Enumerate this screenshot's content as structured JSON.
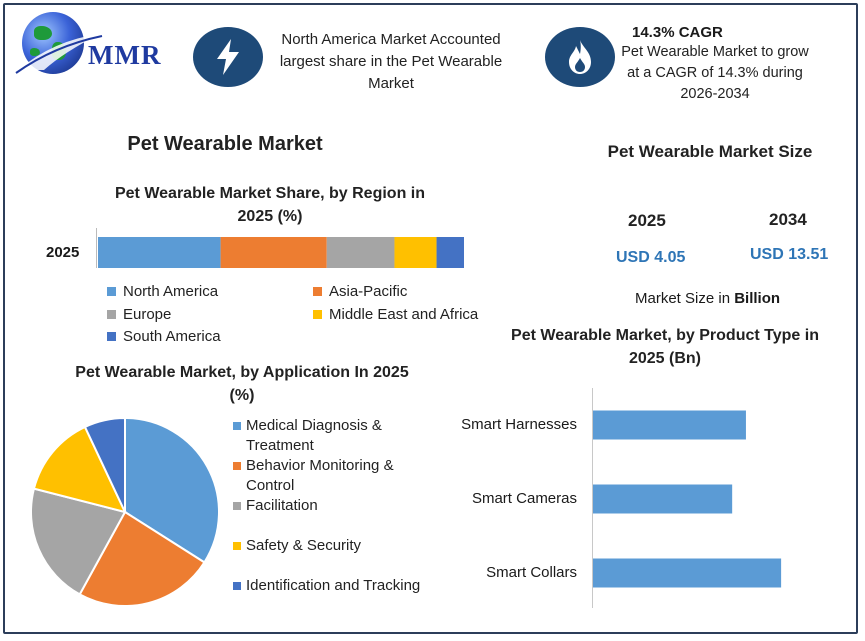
{
  "brand": {
    "logo_text": "MMR"
  },
  "header": {
    "highlight_text": "North America Market Accounted largest share in the Pet Wearable Market",
    "cagr_title": "14.3% CAGR",
    "cagr_text": "Pet Wearable Market to grow at a CAGR of 14.3% during 2026-2034",
    "icons": [
      "lightning-icon",
      "flame-icon"
    ]
  },
  "main_title": "Pet Wearable Market",
  "market_size": {
    "title": "Pet Wearable Market Size",
    "years": [
      "2025",
      "2034"
    ],
    "values": [
      "USD 4.05",
      "USD 13.51"
    ],
    "note_prefix": "Market Size in",
    "note_unit": "Billion"
  },
  "colors": {
    "blue": "#5b9bd5",
    "orange": "#ed7d31",
    "gray": "#a5a5a5",
    "yellow": "#ffc000",
    "dark_blue": "#4472c4",
    "navy": "#1e4a78"
  },
  "chart_data": [
    {
      "type": "bar",
      "orientation": "horizontal-stacked",
      "title": "Pet Wearable Market Share, by Region in 2025 (%)",
      "categories": [
        "2025"
      ],
      "series": [
        {
          "name": "North America",
          "values": [
            33.5
          ],
          "color": "#5b9bd5"
        },
        {
          "name": "Asia-Pacific",
          "values": [
            29.0
          ],
          "color": "#ed7d31"
        },
        {
          "name": "Europe",
          "values": [
            18.5
          ],
          "color": "#a5a5a5"
        },
        {
          "name": "Middle East and Africa",
          "values": [
            11.5
          ],
          "color": "#ffc000"
        },
        {
          "name": "South America",
          "values": [
            7.5
          ],
          "color": "#4472c4"
        }
      ],
      "xlim": [
        0,
        100
      ],
      "legend": "bottom"
    },
    {
      "type": "pie",
      "title": "Pet Wearable Market, by Application In 2025 (%)",
      "labels": [
        "Medical Diagnosis & Treatment",
        "Behavior Monitoring & Control",
        "Facilitation",
        "Safety & Security",
        "Identification and Tracking"
      ],
      "values": [
        34,
        24,
        21,
        14,
        7
      ],
      "colors": [
        "#5b9bd5",
        "#ed7d31",
        "#a5a5a5",
        "#ffc000",
        "#4472c4"
      ],
      "legend": "right"
    },
    {
      "type": "bar",
      "orientation": "horizontal",
      "title": "Pet Wearable Market, by Product Type in 2025 (Bn)",
      "categories": [
        "Smart Harnesses",
        "Smart Cameras",
        "Smart Collars"
      ],
      "values": [
        1.0,
        0.91,
        1.23
      ],
      "color": "#5b9bd5",
      "xlim": [
        0,
        1.7
      ],
      "grid": false
    }
  ]
}
